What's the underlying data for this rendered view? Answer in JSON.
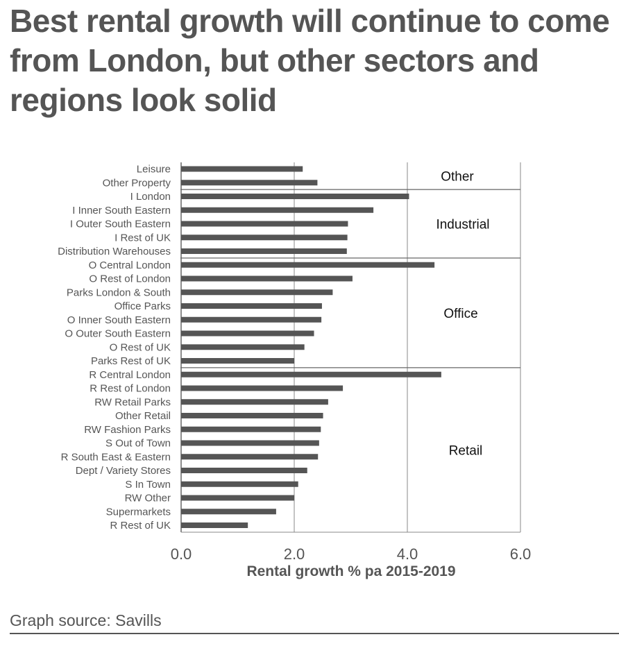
{
  "title": "Best rental growth will continue to come from London, but other sectors and regions look solid",
  "source": "Graph source: Savills",
  "chart_data": {
    "type": "bar",
    "orientation": "horizontal",
    "xlabel": "Rental growth % pa 2015-2019",
    "xlim": [
      0,
      6
    ],
    "xticks": [
      "0.0",
      "2.0",
      "4.0",
      "6.0"
    ],
    "grid": "vertical",
    "bar_color": "#555555",
    "categories": [
      "Leisure",
      "Other Property",
      "I London",
      "I Inner South Eastern",
      "I Outer South Eastern",
      "I Rest of UK",
      "Distribution Warehouses",
      "O Central London",
      "O Rest of London",
      "Parks London & South",
      "Office Parks",
      "O Inner South Eastern",
      "O Outer South Eastern",
      "O Rest of UK",
      "Parks Rest of UK",
      "R Central London",
      "R Rest of London",
      "RW Retail Parks",
      "Other Retail",
      "RW Fashion Parks",
      "S Out of Town",
      "R South East & Eastern",
      "Dept / Variety Stores",
      "S In Town",
      "RW Other",
      "Supermarkets",
      "R Rest of UK"
    ],
    "values": [
      2.15,
      2.41,
      4.03,
      3.4,
      2.95,
      2.94,
      2.93,
      4.48,
      3.03,
      2.68,
      2.49,
      2.48,
      2.35,
      2.18,
      2.0,
      4.6,
      2.86,
      2.6,
      2.51,
      2.47,
      2.44,
      2.42,
      2.23,
      2.07,
      2.0,
      1.68,
      1.18
    ],
    "groups": [
      {
        "name": "Other",
        "first": 0,
        "last": 1
      },
      {
        "name": "Industrial",
        "first": 2,
        "last": 6
      },
      {
        "name": "Office",
        "first": 7,
        "last": 14
      },
      {
        "name": "Retail",
        "first": 15,
        "last": 26
      }
    ]
  }
}
